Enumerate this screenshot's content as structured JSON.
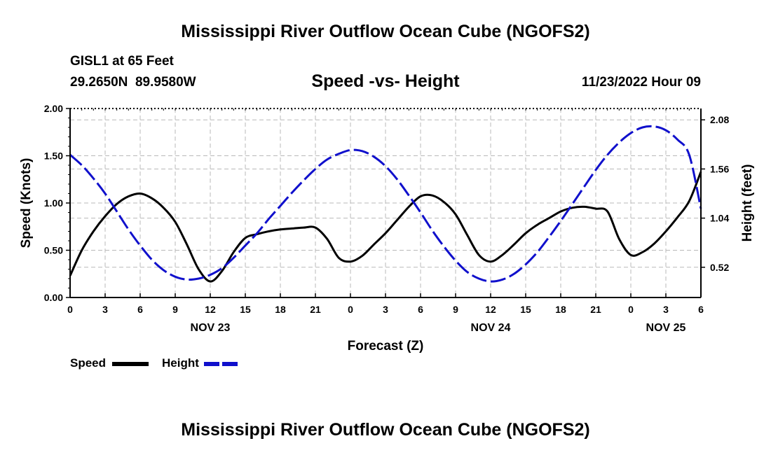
{
  "header": {
    "title": "Mississippi River Outflow Ocean Cube (NGOFS2)",
    "station": "GISL1 at 65 Feet",
    "coords": "29.2650N  89.9580W",
    "date": "11/23/2022 Hour 09",
    "footer_title": "Mississippi River Outflow Ocean Cube (NGOFS2)"
  },
  "legend": {
    "speed_label": "Speed",
    "height_label": "Height"
  },
  "colors": {
    "speed": "#000000",
    "height": "#1010cc",
    "grid": "#b8b8b8"
  },
  "chart_data": {
    "type": "line",
    "title": "Speed -vs- Height",
    "xlabel": "Forecast (Z)",
    "ylabel": "Speed (Knots)",
    "y2label": "Height (feet)",
    "xlim": [
      0,
      54
    ],
    "ylim": [
      0,
      2
    ],
    "y2lim": [
      0.2,
      2.2
    ],
    "x_ticks": [
      0,
      3,
      6,
      9,
      12,
      15,
      18,
      21,
      24,
      27,
      30,
      33,
      36,
      39,
      42,
      45,
      48,
      51,
      54
    ],
    "x_tick_labels": [
      "0",
      "3",
      "6",
      "9",
      "12",
      "15",
      "18",
      "21",
      "0",
      "3",
      "6",
      "9",
      "12",
      "15",
      "18",
      "21",
      "0",
      "3",
      "6"
    ],
    "date_labels": [
      {
        "x": 12,
        "label": "NOV 23"
      },
      {
        "x": 36,
        "label": "NOV 24"
      },
      {
        "x": 51,
        "label": "NOV 25"
      }
    ],
    "y_ticks": [
      0.0,
      0.5,
      1.0,
      1.5,
      2.0
    ],
    "y_tick_labels": [
      "0.00",
      "0.50",
      "1.00",
      "1.50",
      "2.00"
    ],
    "y2_ticks": [
      0.52,
      1.04,
      1.56,
      2.08
    ],
    "y2_tick_labels": [
      "0.52",
      "1.04",
      "1.56",
      "2.08"
    ],
    "series": [
      {
        "name": "Speed",
        "axis": "left",
        "style": "solid",
        "x": [
          0,
          1,
          2,
          3,
          4,
          5,
          6,
          7,
          8,
          9,
          10,
          11,
          12,
          13,
          14,
          15,
          16,
          17,
          18,
          19,
          20,
          21,
          22,
          23,
          24,
          25,
          26,
          27,
          28,
          29,
          30,
          31,
          32,
          33,
          34,
          35,
          36,
          37,
          38,
          39,
          40,
          41,
          42,
          43,
          44,
          45,
          46,
          47,
          48,
          49,
          50,
          51,
          52,
          53,
          54
        ],
        "values": [
          0.23,
          0.5,
          0.7,
          0.86,
          0.99,
          1.07,
          1.1,
          1.05,
          0.95,
          0.8,
          0.56,
          0.3,
          0.17,
          0.28,
          0.48,
          0.63,
          0.67,
          0.7,
          0.72,
          0.73,
          0.74,
          0.74,
          0.62,
          0.42,
          0.38,
          0.44,
          0.56,
          0.68,
          0.82,
          0.96,
          1.07,
          1.08,
          1.01,
          0.88,
          0.66,
          0.45,
          0.38,
          0.45,
          0.56,
          0.68,
          0.77,
          0.84,
          0.91,
          0.95,
          0.96,
          0.94,
          0.91,
          0.62,
          0.45,
          0.48,
          0.57,
          0.7,
          0.85,
          1.02,
          1.33
        ]
      },
      {
        "name": "Height",
        "axis": "right",
        "style": "dashed",
        "x": [
          0,
          1,
          2,
          3,
          4,
          5,
          6,
          7,
          8,
          9,
          10,
          11,
          12,
          13,
          14,
          15,
          16,
          17,
          18,
          19,
          20,
          21,
          22,
          23,
          24,
          25,
          26,
          27,
          28,
          29,
          30,
          31,
          32,
          33,
          34,
          35,
          36,
          37,
          38,
          39,
          40,
          41,
          42,
          43,
          44,
          45,
          46,
          47,
          48,
          49,
          50,
          51,
          52,
          53,
          54
        ],
        "values": [
          1.71,
          1.6,
          1.46,
          1.3,
          1.11,
          0.92,
          0.75,
          0.6,
          0.49,
          0.42,
          0.39,
          0.4,
          0.44,
          0.51,
          0.62,
          0.75,
          0.88,
          1.03,
          1.17,
          1.31,
          1.44,
          1.56,
          1.66,
          1.72,
          1.76,
          1.75,
          1.69,
          1.59,
          1.45,
          1.28,
          1.1,
          0.91,
          0.74,
          0.59,
          0.47,
          0.4,
          0.37,
          0.39,
          0.45,
          0.55,
          0.68,
          0.84,
          1.01,
          1.19,
          1.37,
          1.55,
          1.71,
          1.84,
          1.94,
          2.0,
          2.01,
          1.97,
          1.87,
          1.71,
          1.14
        ]
      }
    ]
  }
}
